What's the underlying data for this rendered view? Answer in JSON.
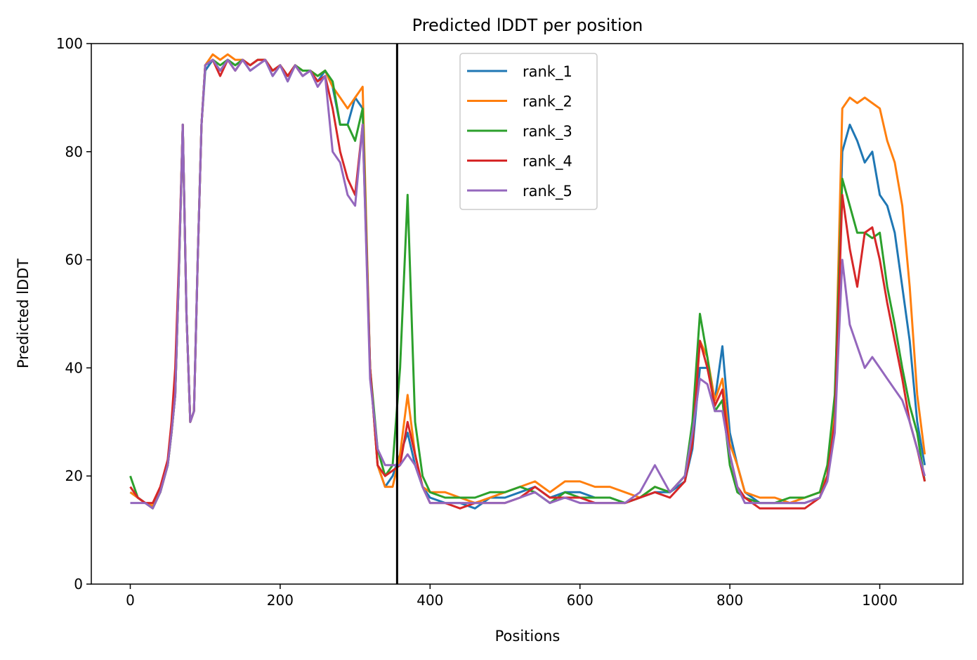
{
  "chart_data": {
    "type": "line",
    "title": "Predicted lDDT per position",
    "xlabel": "Positions",
    "ylabel": "Predicted lDDT",
    "xlim": [
      -52,
      1111
    ],
    "ylim": [
      0,
      100
    ],
    "x_ticks": [
      0,
      200,
      400,
      600,
      800,
      1000
    ],
    "y_ticks": [
      0,
      20,
      40,
      60,
      80,
      100
    ],
    "vline_x": 356,
    "grid": false,
    "legend_position": "upper-center",
    "x_points": [
      0,
      10,
      20,
      30,
      40,
      50,
      55,
      60,
      65,
      70,
      75,
      80,
      85,
      90,
      95,
      100,
      110,
      120,
      130,
      140,
      150,
      160,
      170,
      180,
      190,
      200,
      210,
      220,
      230,
      240,
      250,
      260,
      270,
      280,
      290,
      300,
      310,
      320,
      330,
      340,
      350,
      360,
      370,
      380,
      390,
      400,
      420,
      440,
      460,
      480,
      500,
      520,
      540,
      560,
      580,
      600,
      620,
      640,
      660,
      680,
      700,
      720,
      740,
      750,
      760,
      770,
      780,
      790,
      800,
      810,
      820,
      840,
      860,
      880,
      900,
      920,
      930,
      940,
      950,
      960,
      970,
      980,
      990,
      1000,
      1010,
      1020,
      1030,
      1040,
      1050,
      1060
    ],
    "series": [
      {
        "name": "rank_1",
        "color": "#1f77b4",
        "values": [
          17,
          16,
          15,
          14.5,
          17,
          22,
          28,
          35,
          58,
          85,
          50,
          30,
          32,
          60,
          85,
          95,
          97,
          95,
          97,
          96,
          97,
          95,
          96,
          97,
          94,
          96,
          93,
          96,
          94,
          95,
          93,
          95,
          92,
          85,
          85,
          90,
          88,
          40,
          22,
          18,
          20,
          24,
          28,
          22,
          18,
          16,
          15,
          15,
          14,
          16,
          16,
          17,
          18,
          16,
          17,
          17,
          16,
          16,
          15,
          16,
          17,
          17,
          19,
          25,
          40,
          40,
          34,
          44,
          28,
          22,
          17,
          15,
          15,
          15,
          15,
          16,
          20,
          30,
          80,
          85,
          82,
          78,
          80,
          72,
          70,
          65,
          55,
          45,
          30,
          22
        ]
      },
      {
        "name": "rank_2",
        "color": "#ff7f0e",
        "values": [
          17,
          16,
          15,
          14.5,
          17,
          22,
          28,
          35,
          58,
          85,
          50,
          30,
          32,
          60,
          85,
          96,
          98,
          97,
          98,
          97,
          97,
          96,
          97,
          97,
          95,
          96,
          94,
          96,
          95,
          95,
          94,
          95,
          92,
          90,
          88,
          90,
          92,
          40,
          22,
          18,
          18,
          24,
          35,
          24,
          18,
          17,
          17,
          16,
          15,
          16,
          17,
          18,
          19,
          17,
          19,
          19,
          18,
          18,
          17,
          16,
          18,
          17,
          20,
          28,
          45,
          42,
          34,
          38,
          26,
          22,
          17,
          16,
          16,
          15,
          16,
          17,
          20,
          32,
          88,
          90,
          89,
          90,
          89,
          88,
          82,
          78,
          70,
          55,
          35,
          24
        ]
      },
      {
        "name": "rank_3",
        "color": "#2ca02c",
        "values": [
          20,
          16,
          15,
          14,
          17,
          22,
          28,
          35,
          58,
          85,
          50,
          30,
          32,
          60,
          85,
          96,
          97,
          96,
          97,
          96,
          97,
          96,
          97,
          97,
          95,
          96,
          94,
          96,
          95,
          95,
          94,
          95,
          93,
          85,
          85,
          82,
          88,
          40,
          25,
          20,
          22,
          40,
          72,
          30,
          20,
          17,
          16,
          16,
          16,
          17,
          17,
          18,
          17,
          15,
          17,
          16,
          16,
          16,
          15,
          16,
          18,
          17,
          20,
          30,
          50,
          42,
          32,
          34,
          22,
          17,
          16,
          15,
          15,
          16,
          16,
          17,
          22,
          35,
          75,
          70,
          65,
          65,
          64,
          65,
          55,
          48,
          40,
          33,
          28,
          19
        ]
      },
      {
        "name": "rank_4",
        "color": "#d62728",
        "values": [
          18,
          16,
          15,
          15,
          18,
          23,
          30,
          40,
          60,
          85,
          50,
          30,
          32,
          60,
          85,
          96,
          97,
          94,
          97,
          95,
          97,
          96,
          97,
          97,
          95,
          96,
          94,
          96,
          94,
          95,
          93,
          94,
          88,
          80,
          75,
          72,
          85,
          40,
          22,
          20,
          21,
          22,
          30,
          24,
          18,
          15,
          15,
          14,
          15,
          15,
          15,
          16,
          18,
          16,
          16,
          16,
          15,
          15,
          15,
          16,
          17,
          16,
          19,
          26,
          45,
          40,
          33,
          36,
          24,
          18,
          16,
          14,
          14,
          14,
          14,
          16,
          20,
          30,
          72,
          62,
          55,
          65,
          66,
          60,
          52,
          45,
          38,
          30,
          25,
          19
        ]
      },
      {
        "name": "rank_5",
        "color": "#9467bd",
        "values": [
          15,
          15,
          15,
          14,
          17,
          22,
          28,
          35,
          58,
          85,
          50,
          30,
          32,
          60,
          85,
          96,
          97,
          95,
          97,
          95,
          97,
          95,
          96,
          97,
          94,
          96,
          93,
          96,
          94,
          95,
          92,
          94,
          80,
          78,
          72,
          70,
          85,
          38,
          25,
          22,
          22,
          22,
          24,
          22,
          18,
          15,
          15,
          15,
          15,
          15,
          15,
          16,
          17,
          15,
          16,
          15,
          15,
          15,
          15,
          17,
          22,
          17,
          20,
          28,
          38,
          37,
          32,
          32,
          24,
          18,
          15,
          15,
          15,
          15,
          15,
          16,
          19,
          28,
          60,
          48,
          44,
          40,
          42,
          40,
          38,
          36,
          34,
          30,
          25,
          20
        ]
      }
    ]
  }
}
